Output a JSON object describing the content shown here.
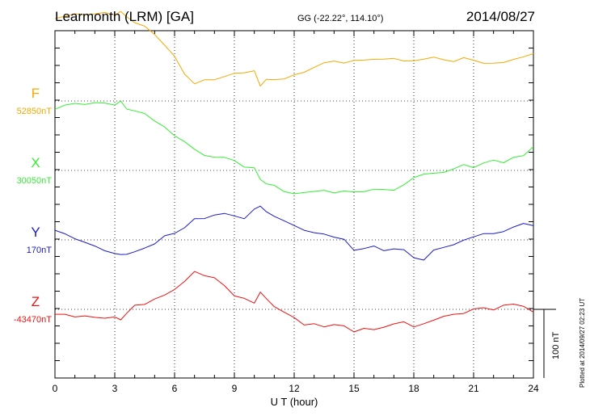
{
  "header": {
    "title": "Learmonth (LRM)  [GA]",
    "coords": "GG (-22.22°, 114.10°)",
    "date": "2014/08/27"
  },
  "footer": {
    "plotted": "Plotted at 2014/09/27 02:23 UT",
    "scale": "100 nT"
  },
  "chart_data": {
    "type": "line",
    "xlabel": "U T (hour)",
    "xlim": [
      0,
      24
    ],
    "xticks": [
      "0",
      "3",
      "6",
      "9",
      "12",
      "15",
      "18",
      "21",
      "24"
    ],
    "grid": "dotted",
    "series": [
      {
        "name": "F",
        "baseline": "52850nT",
        "color": "#f5a800",
        "x": [
          0,
          0.5,
          1,
          1.5,
          2,
          2.5,
          3,
          3.3,
          3.6,
          4,
          4.5,
          5,
          5.5,
          6,
          6.5,
          7,
          7.5,
          8,
          8.5,
          9,
          9.5,
          10,
          10.3,
          10.6,
          11,
          11.5,
          12,
          12.5,
          13,
          13.5,
          14,
          14.5,
          15,
          15.5,
          16,
          16.5,
          17,
          17.5,
          18,
          18.5,
          19,
          19.5,
          20,
          20.5,
          21,
          21.5,
          22,
          22.5,
          23,
          23.5,
          24
        ],
        "values": [
          120,
          124,
          126,
          126,
          127,
          128,
          126,
          130,
          122,
          115,
          108,
          97,
          82,
          64,
          40,
          25,
          30,
          32,
          35,
          40,
          42,
          43,
          22,
          32,
          30,
          33,
          38,
          41,
          50,
          55,
          58,
          56,
          58,
          60,
          61,
          60,
          63,
          58,
          58,
          62,
          63,
          60,
          58,
          62,
          60,
          55,
          54,
          57,
          60,
          64,
          70
        ]
      },
      {
        "name": "X",
        "baseline": "30050nT",
        "color": "#33ee33",
        "x": [
          0,
          0.5,
          1,
          1.5,
          2,
          2.5,
          3,
          3.3,
          3.6,
          4,
          4.5,
          5,
          5.5,
          6,
          6.5,
          7,
          7.5,
          8,
          8.5,
          9,
          9.5,
          10,
          10.3,
          10.6,
          11,
          11.5,
          12,
          12.5,
          13,
          13.5,
          14,
          14.5,
          15,
          15.5,
          16,
          16.5,
          17,
          17.5,
          18,
          18.5,
          19,
          19.5,
          20,
          20.5,
          21,
          21.5,
          22,
          22.5,
          23,
          23.5,
          24
        ],
        "values": [
          90,
          95,
          97,
          97,
          98,
          98,
          96,
          100,
          90,
          87,
          82,
          73,
          63,
          50,
          43,
          30,
          22,
          20,
          18,
          15,
          5,
          3,
          -12,
          -20,
          -22,
          -30,
          -35,
          -32,
          -30,
          -30,
          -32,
          -30,
          -32,
          -30,
          -28,
          -28,
          -28,
          -22,
          -10,
          -5,
          -5,
          -2,
          2,
          8,
          5,
          10,
          15,
          12,
          18,
          22,
          35
        ]
      },
      {
        "name": "Y",
        "baseline": "170nT",
        "color": "#1a1acc",
        "x": [
          0,
          0.5,
          1,
          1.5,
          2,
          2.5,
          3,
          3.3,
          3.6,
          4,
          4.5,
          5,
          5.5,
          6,
          6.5,
          7,
          7.5,
          8,
          8.5,
          9,
          9.5,
          10,
          10.3,
          10.6,
          11,
          11.5,
          12,
          12.5,
          13,
          13.5,
          14,
          14.5,
          15,
          15.5,
          16,
          16.5,
          17,
          17.5,
          18,
          18.5,
          19,
          19.5,
          20,
          20.5,
          21,
          21.5,
          22,
          22.5,
          23,
          23.5,
          24
        ],
        "values": [
          15,
          8,
          2,
          -3,
          -10,
          -15,
          -20,
          -22,
          -20,
          -18,
          -12,
          -5,
          5,
          10,
          18,
          30,
          32,
          36,
          38,
          36,
          30,
          45,
          50,
          40,
          35,
          28,
          20,
          15,
          10,
          8,
          5,
          0,
          -15,
          -12,
          -10,
          -15,
          -13,
          -15,
          -25,
          -30,
          -15,
          -10,
          -8,
          0,
          5,
          8,
          10,
          12,
          18,
          25,
          20
        ]
      },
      {
        "name": "Z",
        "baseline": "-43470nT",
        "color": "#ee1111",
        "x": [
          0,
          0.5,
          1,
          1.5,
          2,
          2.5,
          3,
          3.3,
          3.6,
          4,
          4.5,
          5,
          5.5,
          6,
          6.5,
          7,
          7.5,
          8,
          8.5,
          9,
          9.5,
          10,
          10.3,
          10.6,
          11,
          11.5,
          12,
          12.5,
          13,
          13.5,
          14,
          14.5,
          15,
          15.5,
          16,
          16.5,
          17,
          17.5,
          18,
          18.5,
          19,
          19.5,
          20,
          20.5,
          21,
          21.5,
          22,
          22.5,
          23,
          23.5,
          24
        ],
        "values": [
          -7,
          -8,
          -10,
          -10,
          -12,
          -12,
          -12,
          -15,
          -5,
          5,
          8,
          15,
          20,
          30,
          40,
          55,
          50,
          45,
          35,
          20,
          15,
          10,
          25,
          15,
          5,
          -5,
          -12,
          -22,
          -22,
          -25,
          -22,
          -25,
          -32,
          -28,
          -30,
          -25,
          -22,
          -18,
          -25,
          -22,
          -15,
          -10,
          -8,
          -5,
          0,
          2,
          0,
          5,
          8,
          5,
          -5
        ]
      }
    ],
    "scale_bar_nT": 100
  }
}
